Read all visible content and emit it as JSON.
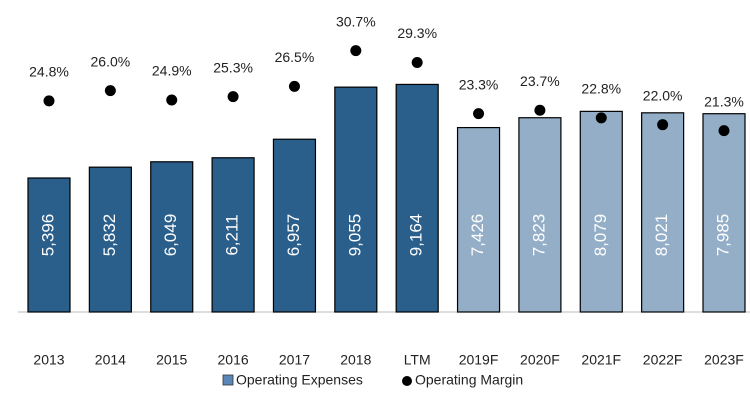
{
  "chart_data": {
    "type": "bar",
    "categories": [
      "2013",
      "2014",
      "2015",
      "2016",
      "2017",
      "2018",
      "LTM",
      "2019F",
      "2020F",
      "2021F",
      "2022F",
      "2023F"
    ],
    "ylim": [
      0,
      12000
    ],
    "y2lim": [
      0,
      35
    ],
    "legend": "bottom",
    "series": [
      {
        "name": "Operating Expenses",
        "type": "bar",
        "color": "#5b87b8",
        "colors": [
          "#2a5f8c",
          "#2a5f8c",
          "#2a5f8c",
          "#2a5f8c",
          "#2a5f8c",
          "#2a5f8c",
          "#2a5f8c",
          "#93aec6",
          "#93aec6",
          "#93aec6",
          "#93aec6",
          "#93aec6"
        ],
        "values": [
          5396,
          5832,
          6049,
          6211,
          6957,
          9055,
          9164,
          7426,
          7823,
          8079,
          8021,
          7985
        ],
        "value_labels": [
          "5,396",
          "5,832",
          "6,049",
          "6,211",
          "6,957",
          "9,055",
          "9,164",
          "7,426",
          "7,823",
          "8,079",
          "8,021",
          "7,985"
        ]
      },
      {
        "name": "Operating Margin",
        "type": "scatter",
        "axis": "y2",
        "color": "#000000",
        "values": [
          24.8,
          26.0,
          24.9,
          25.3,
          26.5,
          30.7,
          29.3,
          23.3,
          23.7,
          22.8,
          22.0,
          21.3
        ],
        "value_labels": [
          "24.8%",
          "26.0%",
          "24.9%",
          "25.3%",
          "26.5%",
          "30.7%",
          "29.3%",
          "23.3%",
          "23.7%",
          "22.8%",
          "22.0%",
          "21.3%"
        ]
      }
    ]
  }
}
